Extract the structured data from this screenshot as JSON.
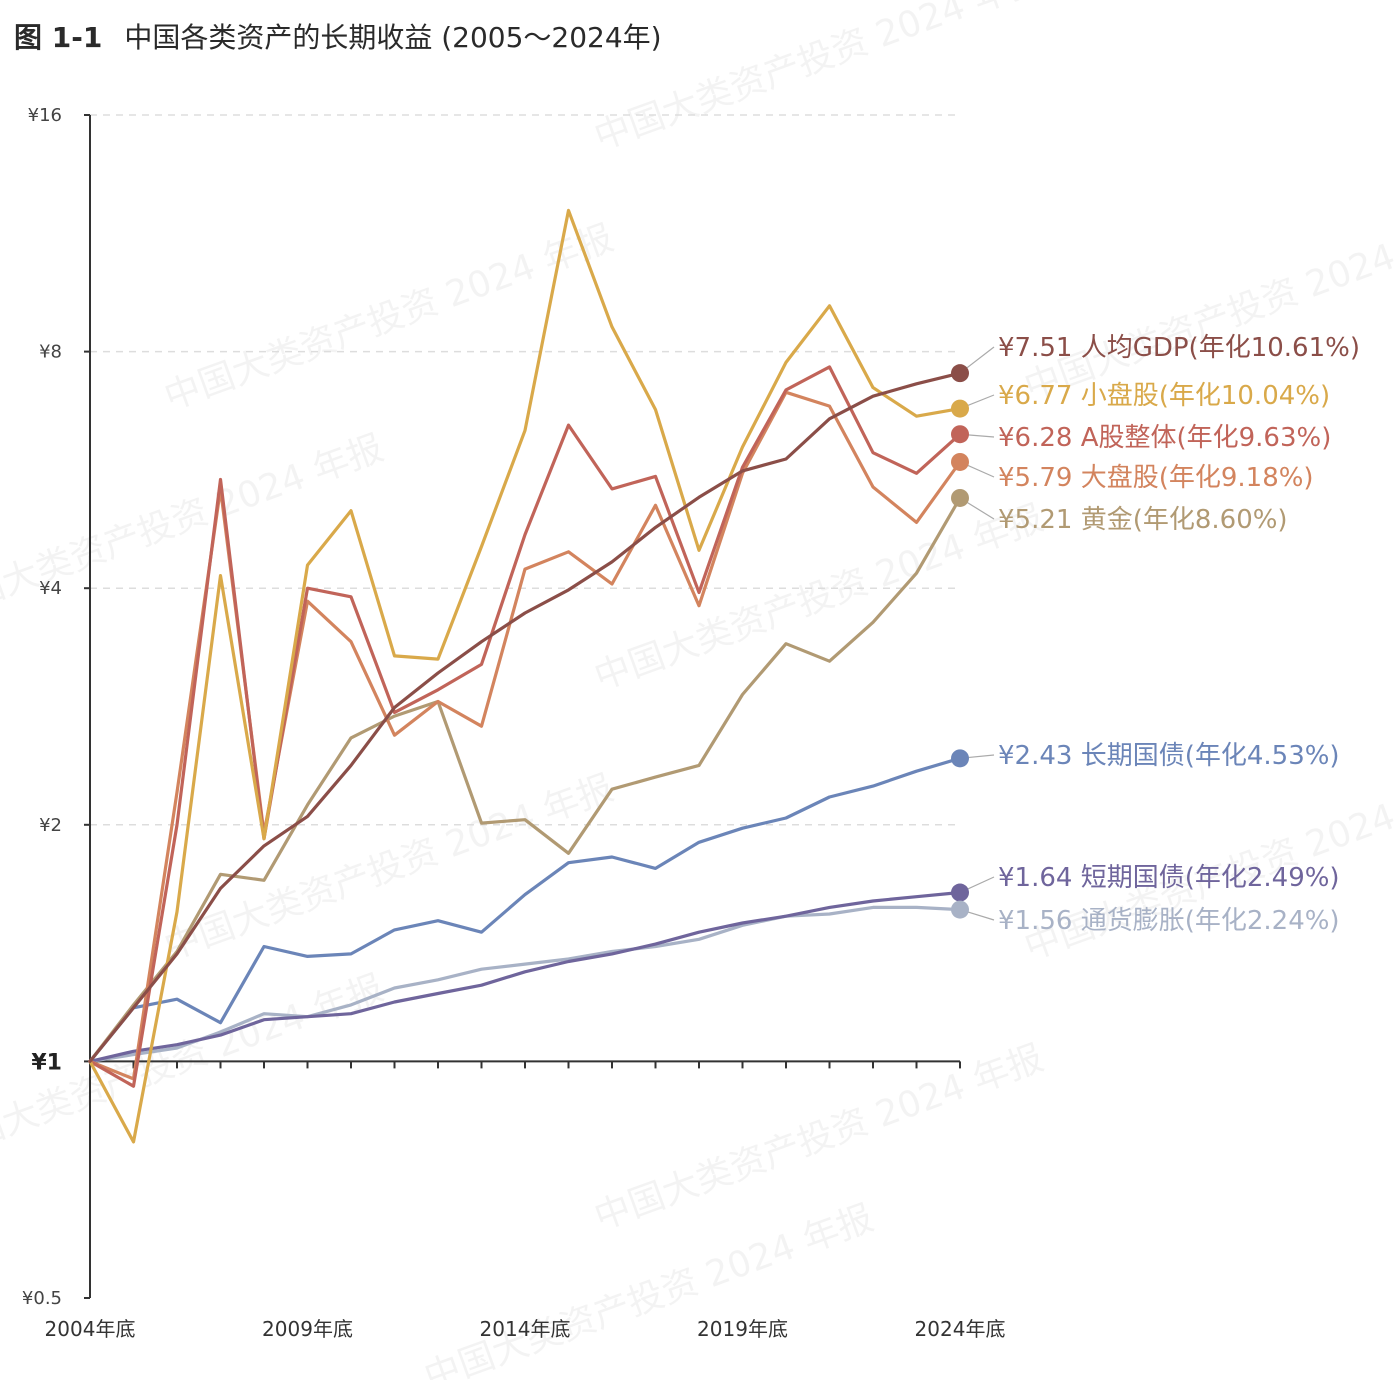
{
  "figure": {
    "title_prefix": "图 1-1",
    "title": "中国各类资产的长期收益 (2005～2024年)"
  },
  "watermark_text": "中国大类资产投资 2024 年报",
  "chart_data": {
    "type": "line",
    "y_scale": "log2",
    "ylim": [
      0.5,
      16
    ],
    "y_ticks": [
      {
        "value": 16,
        "label": "¥16"
      },
      {
        "value": 8,
        "label": "¥8"
      },
      {
        "value": 4,
        "label": "¥4"
      },
      {
        "value": 2,
        "label": "¥2"
      },
      {
        "value": 1,
        "label": "¥1"
      },
      {
        "value": 0.5,
        "label": "¥0.5"
      }
    ],
    "x": [
      2004,
      2005,
      2006,
      2007,
      2008,
      2009,
      2010,
      2011,
      2012,
      2013,
      2014,
      2015,
      2016,
      2017,
      2018,
      2019,
      2020,
      2021,
      2022,
      2023,
      2024
    ],
    "x_ticks": [
      {
        "value": 2004,
        "label": "2004年底"
      },
      {
        "value": 2009,
        "label": "2009年底"
      },
      {
        "value": 2014,
        "label": "2014年底"
      },
      {
        "value": 2019,
        "label": "2019年底"
      },
      {
        "value": 2024,
        "label": "2024年底"
      }
    ],
    "grid": "horizontal dashed",
    "series": [
      {
        "name": "人均GDP",
        "color": "#8B4E48",
        "values": [
          1,
          1.17,
          1.37,
          1.66,
          1.88,
          2.05,
          2.38,
          2.82,
          3.12,
          3.42,
          3.72,
          3.98,
          4.32,
          4.78,
          5.22,
          5.64,
          5.84,
          6.57,
          7.02,
          7.28,
          7.51
        ],
        "end_label": "¥7.51  人均GDP(年化10.61%)"
      },
      {
        "name": "小盘股",
        "color": "#D9A94A",
        "values": [
          1,
          0.79,
          1.55,
          4.15,
          1.92,
          4.28,
          5.02,
          3.28,
          3.25,
          4.52,
          6.35,
          12.1,
          8.6,
          6.75,
          4.47,
          6.05,
          7.75,
          9.15,
          7.2,
          6.62,
          6.77
        ],
        "end_label": "¥6.77  小盘股(年化10.04%)"
      },
      {
        "name": "A股整体",
        "color": "#C16459",
        "values": [
          1,
          0.93,
          2.0,
          5.5,
          1.92,
          4.0,
          3.9,
          2.78,
          2.97,
          3.2,
          4.68,
          6.45,
          5.35,
          5.55,
          3.95,
          5.7,
          7.15,
          7.65,
          5.95,
          5.6,
          6.28
        ],
        "end_label": "¥6.28 A股整体(年化9.63%)"
      },
      {
        "name": "大盘股",
        "color": "#D3845E",
        "values": [
          1,
          0.95,
          2.2,
          5.35,
          1.95,
          3.85,
          3.42,
          2.6,
          2.87,
          2.67,
          4.23,
          4.45,
          4.05,
          5.1,
          3.8,
          5.6,
          7.1,
          6.82,
          5.38,
          4.85,
          5.79
        ],
        "end_label": "¥5.79  大盘股(年化9.18%)"
      },
      {
        "name": "黄金",
        "color": "#B19A73",
        "values": [
          1,
          1.18,
          1.38,
          1.73,
          1.7,
          2.12,
          2.58,
          2.75,
          2.87,
          2.01,
          2.03,
          1.84,
          2.22,
          2.3,
          2.38,
          2.93,
          3.4,
          3.23,
          3.62,
          4.18,
          5.21
        ],
        "end_label": "¥5.21  黄金(年化8.60%)"
      },
      {
        "name": "长期国债",
        "color": "#6B85B8",
        "values": [
          1,
          1.17,
          1.2,
          1.12,
          1.4,
          1.36,
          1.37,
          1.47,
          1.51,
          1.46,
          1.63,
          1.79,
          1.82,
          1.76,
          1.9,
          1.98,
          2.04,
          2.17,
          2.24,
          2.34,
          2.43
        ],
        "end_label": "¥2.43 长期国债(年化4.53%)"
      },
      {
        "name": "短期国债",
        "color": "#6F659C",
        "values": [
          1,
          1.03,
          1.05,
          1.08,
          1.13,
          1.14,
          1.15,
          1.19,
          1.22,
          1.25,
          1.3,
          1.34,
          1.37,
          1.41,
          1.46,
          1.5,
          1.53,
          1.57,
          1.6,
          1.62,
          1.64
        ],
        "end_label": "¥1.64  短期国债(年化2.49%)"
      },
      {
        "name": "通货膨胀",
        "color": "#A8B2C6",
        "values": [
          1,
          1.02,
          1.04,
          1.09,
          1.15,
          1.14,
          1.18,
          1.24,
          1.27,
          1.31,
          1.33,
          1.35,
          1.38,
          1.4,
          1.43,
          1.49,
          1.53,
          1.54,
          1.57,
          1.57,
          1.56
        ],
        "end_label": "¥1.56  通货膨胀(年化2.24%)"
      }
    ]
  }
}
